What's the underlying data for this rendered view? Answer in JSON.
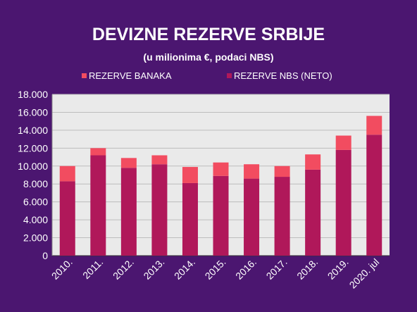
{
  "chart_data": {
    "type": "bar",
    "stacked": true,
    "title": "DEVIZNE REZERVE SRBIJE",
    "subtitle": "(u milionima €, podaci NBS)",
    "xlabel": "",
    "ylabel": "",
    "ylim": [
      0,
      18000
    ],
    "yticks": [
      0,
      2000,
      4000,
      6000,
      8000,
      10000,
      12000,
      14000,
      16000,
      18000
    ],
    "ytick_labels": [
      "0",
      "2.000",
      "4.000",
      "6.000",
      "8.000",
      "10.000",
      "12.000",
      "14.000",
      "16.000",
      "18.000"
    ],
    "grid": true,
    "legend_position": "top",
    "categories": [
      "2010.",
      "2011.",
      "2012.",
      "2013.",
      "2014.",
      "2015.",
      "2016.",
      "2017.",
      "2018.",
      "2019.",
      "2020. jul"
    ],
    "series": [
      {
        "name": "REZERVE NBS (NETO)",
        "color": "#b0185a",
        "values": [
          8300,
          11200,
          9800,
          10200,
          8100,
          8900,
          8600,
          8800,
          9600,
          11800,
          13500
        ]
      },
      {
        "name": "REZERVE BANAKA",
        "color": "#f24c60",
        "values": [
          1700,
          800,
          1100,
          1000,
          1800,
          1500,
          1600,
          1200,
          1700,
          1600,
          2100
        ]
      }
    ],
    "legend_order": [
      "REZERVE BANAKA",
      "REZERVE NBS (NETO)"
    ],
    "colors": {
      "background": "#4b1670",
      "plot_area": "#eaeaea",
      "grid": "#bdbdbd",
      "text": "#ffffff"
    }
  }
}
